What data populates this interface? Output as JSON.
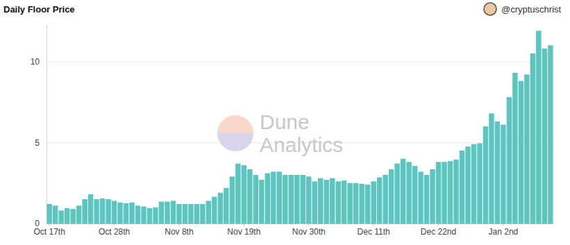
{
  "chart_data": {
    "type": "bar",
    "title": "Daily Floor Price",
    "annotations": [
      "@cryptuschrist",
      "Dune",
      "Analytics"
    ],
    "categories": [
      "Oct 17th",
      null,
      null,
      null,
      null,
      null,
      null,
      null,
      null,
      null,
      null,
      "Oct 28th",
      null,
      null,
      null,
      null,
      null,
      null,
      null,
      null,
      null,
      null,
      "Nov 8th",
      null,
      null,
      null,
      null,
      null,
      null,
      null,
      null,
      null,
      null,
      "Nov 19th",
      null,
      null,
      null,
      null,
      null,
      null,
      null,
      null,
      null,
      null,
      "Nov 30th",
      null,
      null,
      null,
      null,
      null,
      null,
      null,
      null,
      null,
      null,
      "Dec 11th",
      null,
      null,
      null,
      null,
      null,
      null,
      null,
      null,
      null,
      null,
      "Dec 22nd",
      null,
      null,
      null,
      null,
      null,
      null,
      null,
      null,
      null,
      null,
      "Jan 2nd",
      null,
      null,
      null,
      null,
      null,
      null,
      null,
      null
    ],
    "values": [
      1.2,
      1.1,
      0.8,
      0.95,
      0.9,
      1.1,
      1.5,
      1.8,
      1.5,
      1.55,
      1.5,
      1.4,
      1.3,
      1.25,
      1.3,
      1.1,
      1.05,
      0.95,
      1.0,
      1.35,
      1.35,
      1.4,
      1.2,
      1.2,
      1.2,
      1.2,
      1.2,
      1.4,
      1.65,
      1.9,
      2.2,
      2.9,
      3.7,
      3.6,
      3.35,
      3.0,
      2.7,
      3.1,
      3.2,
      3.2,
      3.0,
      3.0,
      3.0,
      3.0,
      2.9,
      2.6,
      2.8,
      2.7,
      2.8,
      2.6,
      2.65,
      2.5,
      2.5,
      2.45,
      2.4,
      2.6,
      2.85,
      3.0,
      3.35,
      3.7,
      4.0,
      3.8,
      3.55,
      3.2,
      3.0,
      3.35,
      3.8,
      3.8,
      3.85,
      3.95,
      4.5,
      4.75,
      4.9,
      4.95,
      6.0,
      6.8,
      6.3,
      6.1,
      7.8,
      9.3,
      8.8,
      9.2,
      10.5,
      11.9,
      10.8,
      11.0
    ],
    "color": "#5cc5bf",
    "ylim": [
      0,
      12.3
    ],
    "yticks": [
      0,
      5,
      10
    ],
    "grid": true
  }
}
